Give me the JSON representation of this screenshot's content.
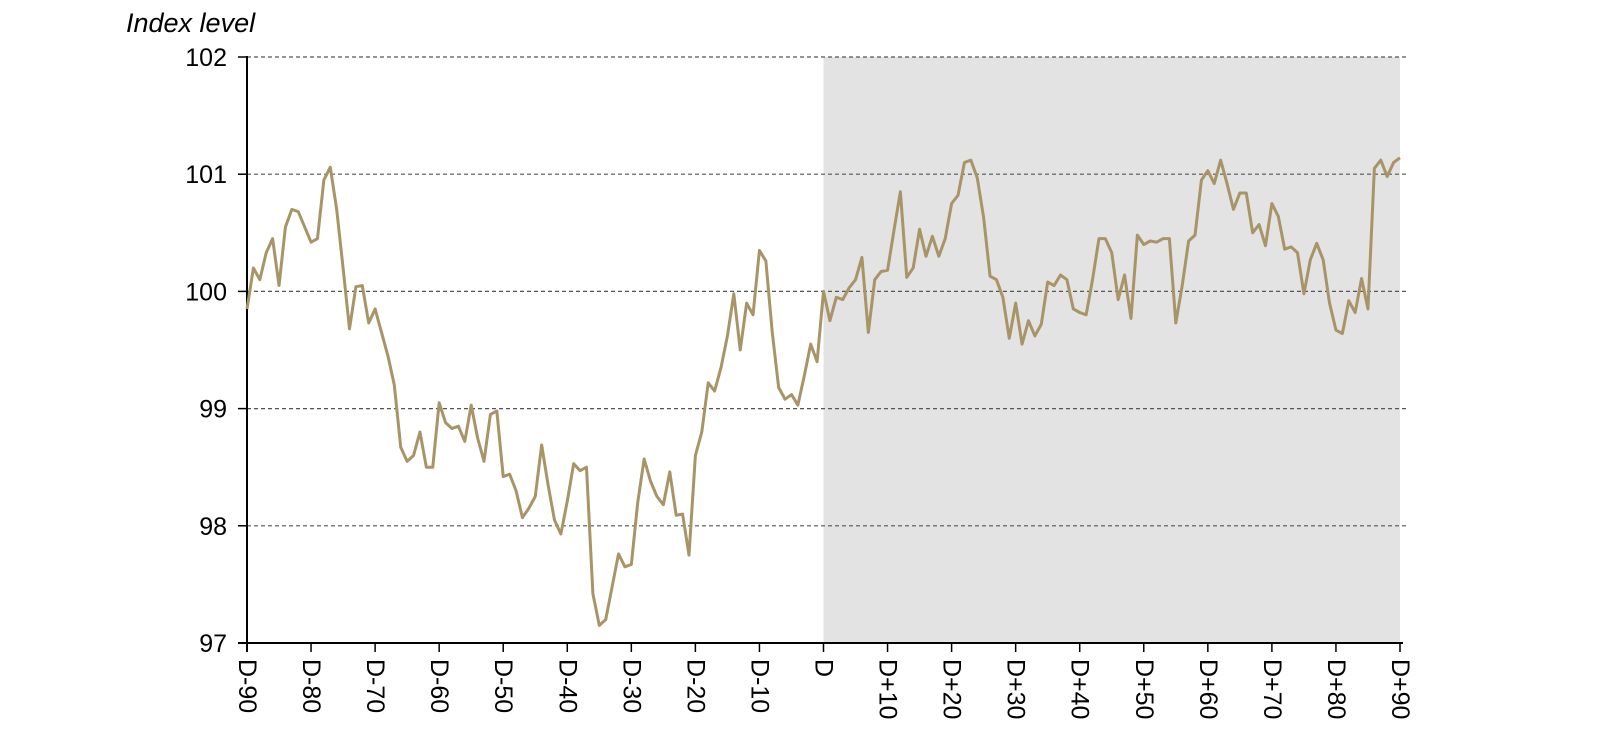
{
  "chart_data": {
    "type": "line",
    "title": "",
    "xlabel": "",
    "ylabel": "Index level",
    "ylim": [
      97,
      102
    ],
    "yticks": [
      "97",
      "98",
      "99",
      "100",
      "101",
      "102"
    ],
    "xticks": [
      "D-90",
      "D-80",
      "D-70",
      "D-60",
      "D-50",
      "D-40",
      "D-30",
      "D-20",
      "D-10",
      "D",
      "D+10",
      "D+20",
      "D+30",
      "D+40",
      "D+50",
      "D+60",
      "D+70",
      "D+80",
      "D+90"
    ],
    "xlim": [
      -90,
      90
    ],
    "shaded_region": {
      "from": 0,
      "to": 90,
      "color": "#e3e3e3"
    },
    "grid": "horizontal dashed",
    "colors": {
      "line": "#a89466",
      "shade": "#e3e3e3",
      "grid": "#555555"
    },
    "series": [
      {
        "x": [
          -90,
          -89,
          -88,
          -87,
          -86,
          -85,
          -84,
          -83,
          -82,
          -81,
          -80,
          -79,
          -78,
          -77,
          -76,
          -75,
          -74,
          -73,
          -72,
          -71,
          -70,
          -69,
          -68,
          -67,
          -66,
          -65,
          -64,
          -63,
          -62,
          -61,
          -60,
          -59,
          -58,
          -57,
          -56,
          -55,
          -54,
          -53,
          -52,
          -51,
          -50,
          -49,
          -48,
          -47,
          -46,
          -45,
          -44,
          -43,
          -42,
          -41,
          -40,
          -39,
          -38,
          -37,
          -36,
          -35,
          -34,
          -33,
          -32,
          -31,
          -30,
          -29,
          -28,
          -27,
          -26,
          -25,
          -24,
          -23,
          -22,
          -21,
          -20,
          -19,
          -18,
          -17,
          -16,
          -15,
          -14,
          -13,
          -12,
          -11,
          -10,
          -9,
          -8,
          -7,
          -6,
          -5,
          -4,
          -3,
          -2,
          -1,
          0,
          1,
          2,
          3,
          4,
          5,
          6,
          7,
          8,
          9,
          10,
          11,
          12,
          13,
          14,
          15,
          16,
          17,
          18,
          19,
          20,
          21,
          22,
          23,
          24,
          25,
          26,
          27,
          28,
          29,
          30,
          31,
          32,
          33,
          34,
          35,
          36,
          37,
          38,
          39,
          40,
          41,
          42,
          43,
          44,
          45,
          46,
          47,
          48,
          49,
          50,
          51,
          52,
          53,
          54,
          55,
          56,
          57,
          58,
          59,
          60,
          61,
          62,
          63,
          64,
          65,
          66,
          67,
          68,
          69,
          70,
          71,
          72,
          73,
          74,
          75,
          76,
          77,
          78,
          79,
          80,
          81,
          82,
          83,
          84,
          85,
          86,
          87,
          88,
          89,
          90
        ],
        "values": [
          99.85,
          100.2,
          100.1,
          100.33,
          100.45,
          100.05,
          100.55,
          100.7,
          100.68,
          100.55,
          100.42,
          100.45,
          100.95,
          101.06,
          100.7,
          100.2,
          99.68,
          100.04,
          100.05,
          99.73,
          99.85,
          99.65,
          99.45,
          99.2,
          98.67,
          98.55,
          98.6,
          98.8,
          98.5,
          98.5,
          99.05,
          98.88,
          98.83,
          98.85,
          98.72,
          99.03,
          98.75,
          98.55,
          98.95,
          98.98,
          98.42,
          98.44,
          98.3,
          98.07,
          98.15,
          98.25,
          98.69,
          98.35,
          98.05,
          97.93,
          98.21,
          98.53,
          98.47,
          98.5,
          97.42,
          97.15,
          97.2,
          97.48,
          97.76,
          97.65,
          97.67,
          98.2,
          98.57,
          98.38,
          98.25,
          98.18,
          98.46,
          98.09,
          98.1,
          97.75,
          98.6,
          98.8,
          99.22,
          99.15,
          99.35,
          99.62,
          99.98,
          99.5,
          99.9,
          99.8,
          100.35,
          100.26,
          99.65,
          99.18,
          99.08,
          99.12,
          99.03,
          99.28,
          99.55,
          99.4,
          100.0,
          99.75,
          99.95,
          99.93,
          100.03,
          100.1,
          100.29,
          99.65,
          100.1,
          100.17,
          100.18,
          100.52,
          100.85,
          100.12,
          100.2,
          100.53,
          100.3,
          100.47,
          100.3,
          100.45,
          100.75,
          100.82,
          101.1,
          101.12,
          100.97,
          100.63,
          100.13,
          100.1,
          99.95,
          99.6,
          99.9,
          99.55,
          99.75,
          99.62,
          99.72,
          100.08,
          100.05,
          100.14,
          100.1,
          99.85,
          99.82,
          99.8,
          100.1,
          100.45,
          100.45,
          100.33,
          99.93,
          100.14,
          99.77,
          100.48,
          100.4,
          100.43,
          100.42,
          100.45,
          100.45,
          99.73,
          100.05,
          100.43,
          100.48,
          100.95,
          101.03,
          100.92,
          101.12,
          100.92,
          100.7,
          100.84,
          100.84,
          100.5,
          100.57,
          100.39,
          100.75,
          100.64,
          100.36,
          100.38,
          100.33,
          99.98,
          100.27,
          100.41,
          100.27,
          99.9,
          99.67,
          99.64,
          99.92,
          99.82,
          100.11,
          99.85,
          101.05,
          101.12,
          100.98,
          101.1,
          101.14
        ]
      }
    ]
  }
}
